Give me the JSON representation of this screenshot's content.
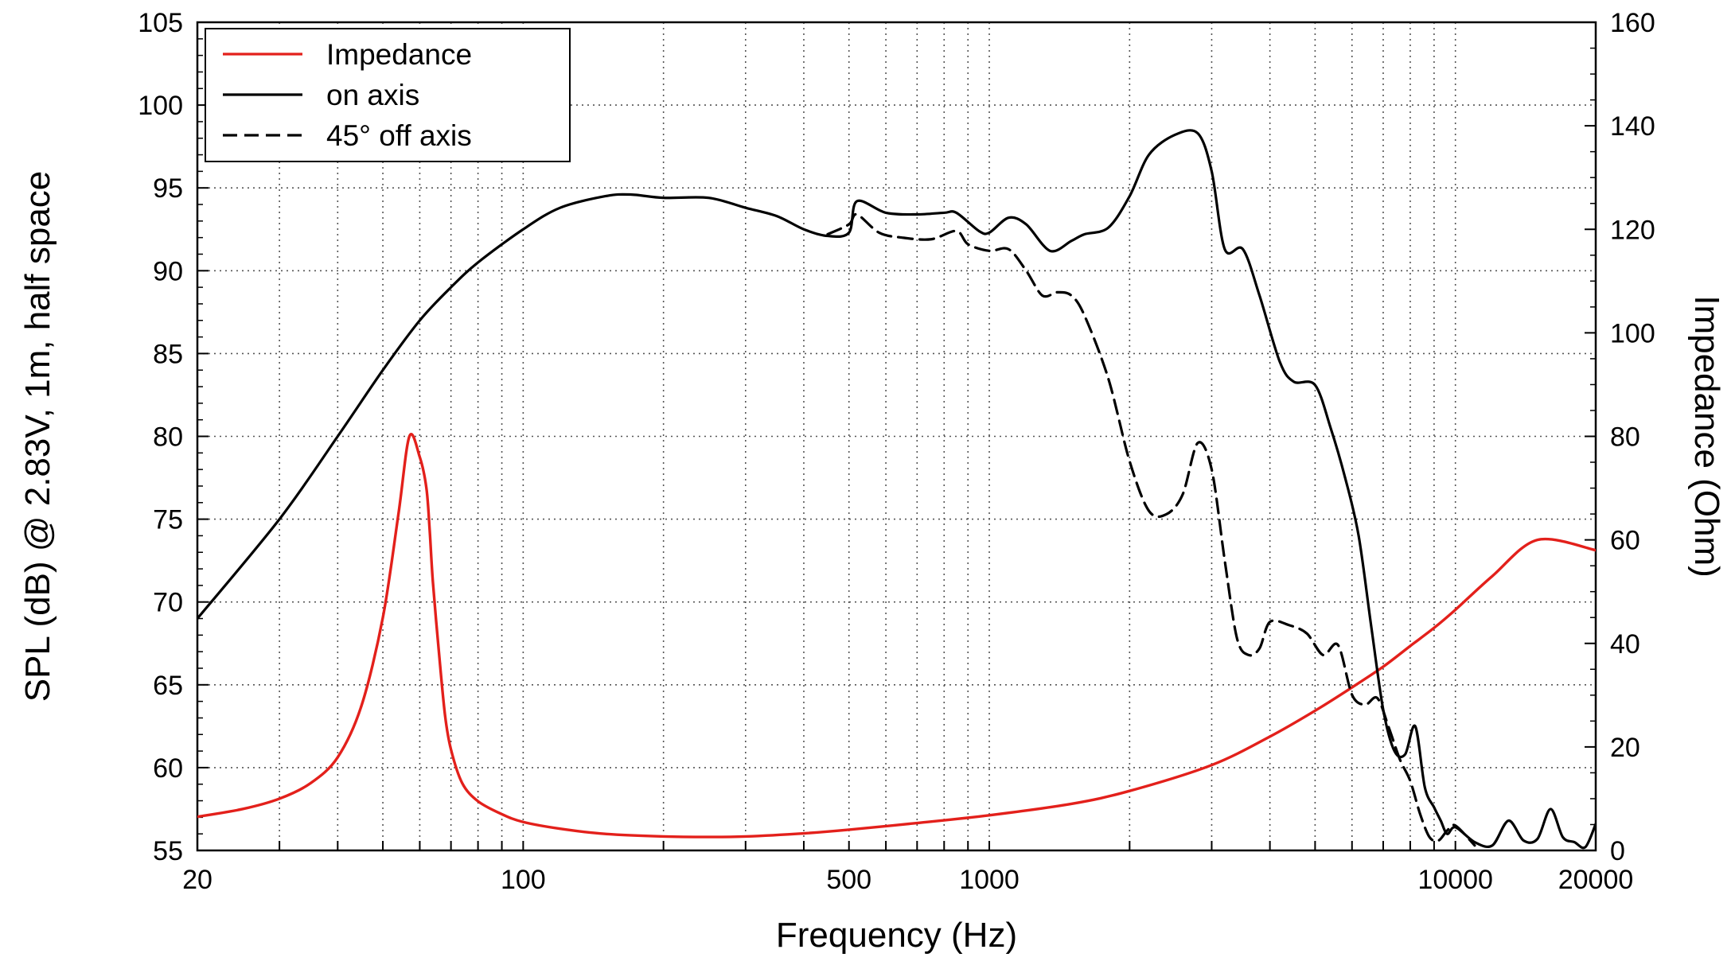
{
  "chart_data": {
    "type": "line",
    "title": "",
    "xlabel": "Frequency (Hz)",
    "ylabel": "SPL (dB) @ 2.83V, 1m, half space",
    "y2label": "Impedance (Ohm)",
    "xscale": "log",
    "xlim": [
      20,
      20000
    ],
    "ylim": [
      55,
      105
    ],
    "y2lim": [
      0,
      160
    ],
    "grid": true,
    "legend_position": "top-left",
    "x_tick_labels": [
      {
        "value": 20,
        "label": "20"
      },
      {
        "value": 100,
        "label": "100"
      },
      {
        "value": 500,
        "label": "500"
      },
      {
        "value": 1000,
        "label": "1000"
      },
      {
        "value": 10000,
        "label": "10000"
      },
      {
        "value": 20000,
        "label": "20000"
      }
    ],
    "y_ticks": [
      55,
      60,
      65,
      70,
      75,
      80,
      85,
      90,
      95,
      100,
      105
    ],
    "y2_ticks": [
      0,
      20,
      40,
      60,
      80,
      100,
      120,
      140,
      160
    ],
    "series": [
      {
        "name": "Impedance",
        "axis": "right",
        "color": "#e3201b",
        "dash": "solid",
        "x": [
          20,
          25,
          30,
          35,
          40,
          45,
          50,
          54,
          57,
          60,
          62,
          63,
          64,
          66,
          68,
          70,
          74,
          80,
          90,
          100,
          120,
          150,
          200,
          250,
          300,
          400,
          500,
          700,
          1000,
          1500,
          2000,
          3000,
          4000,
          5000,
          6000,
          7000,
          8000,
          9000,
          10000,
          12000,
          15000,
          20000
        ],
        "y": [
          6.5,
          8,
          10,
          13,
          18,
          28,
          45,
          65,
          80,
          76,
          70,
          62,
          52,
          38,
          26,
          19.5,
          13,
          9.5,
          7,
          5.5,
          4.2,
          3.2,
          2.7,
          2.6,
          2.7,
          3.3,
          4,
          5.3,
          6.8,
          9,
          11.5,
          16.5,
          22,
          27,
          31.5,
          35.5,
          39.5,
          43,
          46.5,
          53,
          60,
          58
        ]
      },
      {
        "name": "on axis",
        "axis": "left",
        "color": "#000000",
        "dash": "solid",
        "x": [
          20,
          30,
          40,
          50,
          60,
          70,
          80,
          100,
          120,
          150,
          170,
          200,
          250,
          300,
          350,
          400,
          450,
          500,
          520,
          600,
          700,
          800,
          850,
          950,
          1000,
          1100,
          1200,
          1350,
          1500,
          1600,
          1800,
          2000,
          2200,
          2500,
          2800,
          3000,
          3200,
          3500,
          3800,
          4200,
          4500,
          5000,
          5400,
          5800,
          6200,
          6600,
          7000,
          7400,
          7800,
          8200,
          8600,
          9000,
          9300,
          9600,
          10000,
          11000,
          12000,
          13000,
          14000,
          15000,
          16000,
          17000,
          18000,
          19000,
          20000
        ],
        "y": [
          69,
          75,
          80,
          84,
          87,
          89,
          90.5,
          92.5,
          93.8,
          94.5,
          94.6,
          94.4,
          94.4,
          93.8,
          93.3,
          92.5,
          92.1,
          92.3,
          94.2,
          93.5,
          93.4,
          93.5,
          93.5,
          92.4,
          92.3,
          93.2,
          92.8,
          91.2,
          91.8,
          92.2,
          92.6,
          94.5,
          97,
          98.2,
          98.3,
          96,
          91.3,
          91.3,
          88.5,
          84.5,
          83.3,
          83.1,
          80.5,
          77.5,
          74,
          68.5,
          63.5,
          61,
          60.8,
          62.5,
          58.8,
          57.6,
          56.8,
          56,
          56.4,
          55.5,
          55.3,
          56.8,
          55.6,
          55.7,
          57.5,
          55.8,
          55.5,
          55.2,
          56.6
        ]
      },
      {
        "name": "45° off axis",
        "axis": "left",
        "color": "#000000",
        "dash": "dashed",
        "x": [
          450,
          500,
          520,
          580,
          650,
          750,
          850,
          900,
          1000,
          1100,
          1200,
          1300,
          1400,
          1500,
          1600,
          1800,
          2000,
          2200,
          2400,
          2600,
          2800,
          3000,
          3200,
          3400,
          3600,
          3800,
          4000,
          4400,
          4800,
          5200,
          5600,
          6000,
          6400,
          6800,
          7200,
          7600,
          8000,
          8400,
          8800,
          9200,
          9600,
          10000,
          11000
        ],
        "y": [
          92.2,
          92.8,
          93.4,
          92.3,
          92,
          91.9,
          92.4,
          91.6,
          91.2,
          91.3,
          90,
          88.5,
          88.7,
          88.5,
          87.3,
          83.5,
          78.5,
          75.5,
          75.3,
          76.5,
          79.6,
          78,
          72.5,
          67.8,
          66.8,
          67.2,
          68.8,
          68.6,
          68.1,
          66.8,
          67.4,
          64.4,
          63.8,
          64.2,
          62.4,
          60.5,
          59.2,
          57.2,
          55.8,
          55.6,
          56.2,
          56.5,
          55.3
        ]
      }
    ]
  }
}
